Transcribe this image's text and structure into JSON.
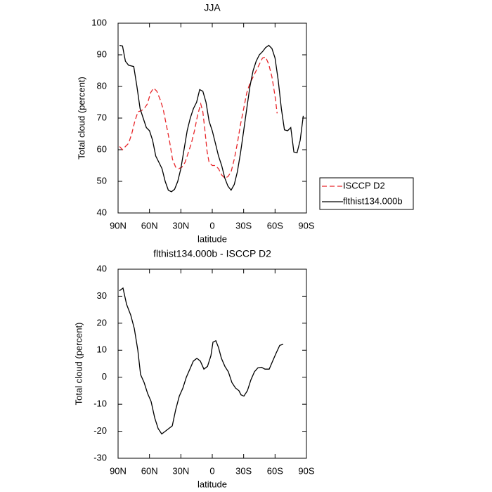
{
  "chart_data": [
    {
      "type": "line",
      "title": "JJA",
      "x_label": "latitude",
      "y_label": "Total cloud (percent)",
      "xlim": [
        90,
        -90
      ],
      "ylim": [
        40,
        100
      ],
      "xticks": [
        {
          "value": 90,
          "label": "90N"
        },
        {
          "value": 60,
          "label": "60N"
        },
        {
          "value": 30,
          "label": "30N"
        },
        0,
        {
          "value": -30,
          "label": "30S"
        },
        {
          "value": -60,
          "label": "60S"
        },
        {
          "value": -90,
          "label": "90S"
        }
      ],
      "yticks": [
        40,
        50,
        60,
        70,
        80,
        90,
        100
      ],
      "legend": "right",
      "series": [
        {
          "name": "ISCCP D2",
          "color": "#e8262a",
          "dash": true,
          "x": [
            88.6,
            85.8,
            83,
            80,
            77,
            74,
            71,
            68,
            65,
            62,
            59,
            56,
            53,
            50,
            47,
            44,
            41,
            38,
            35,
            32,
            29,
            26,
            23,
            20,
            17,
            14,
            11,
            9,
            7,
            5,
            3,
            0,
            -3,
            -6,
            -9,
            -12,
            -15,
            -18,
            -21,
            -24,
            -27,
            -30,
            -33,
            -36,
            -39,
            -42,
            -45,
            -48,
            -51,
            -54,
            -57,
            -60,
            -62
          ],
          "values": [
            61,
            60,
            61,
            62,
            65,
            69,
            72,
            72.3,
            73,
            74.5,
            78,
            79.5,
            78.5,
            76,
            73,
            68,
            63,
            57,
            54.5,
            54,
            54.5,
            56,
            59,
            62,
            66,
            71,
            74.5,
            72,
            66,
            59.5,
            56,
            55,
            55,
            54,
            52,
            51,
            51.5,
            53,
            57,
            62,
            68,
            73,
            78,
            81,
            83,
            85,
            87,
            89,
            89.3,
            87,
            83,
            77,
            71.5
          ]
        },
        {
          "name": "flthist134.000b",
          "color": "#000000",
          "dash": false,
          "x": [
            88.6,
            85.8,
            83,
            80,
            75,
            72,
            69,
            66,
            63,
            60,
            57,
            54,
            51,
            48,
            45,
            42,
            39,
            36,
            33,
            30,
            27,
            24,
            21,
            18,
            15,
            12,
            9,
            6,
            3,
            0,
            -3,
            -6,
            -9,
            -12,
            -15,
            -18,
            -21,
            -24,
            -27,
            -30,
            -33,
            -36,
            -39,
            -42,
            -45,
            -48,
            -51,
            -54,
            -57,
            -60,
            -63,
            -66,
            -69,
            -72,
            -75,
            -78,
            -81,
            -84,
            -87
          ],
          "values": [
            93,
            92.8,
            88,
            86.7,
            86.3,
            80,
            73,
            70,
            67,
            66,
            63,
            58,
            56,
            54,
            50,
            47.2,
            46.7,
            47.5,
            50,
            54,
            60,
            66,
            70,
            73,
            75,
            79,
            78.5,
            75,
            69,
            66,
            62,
            58,
            55,
            51,
            48.5,
            47.2,
            49,
            53,
            59,
            66,
            73,
            80,
            85,
            88,
            90,
            91,
            92.3,
            93,
            92,
            89,
            82,
            73,
            66.3,
            66,
            67,
            59.3,
            59,
            63,
            70.7
          ]
        }
      ]
    },
    {
      "type": "line",
      "title": "flthist134.000b - ISCCP D2",
      "x_label": "latitude",
      "y_label": "Total cloud (percent)",
      "xlim": [
        90,
        -90
      ],
      "ylim": [
        -30,
        40
      ],
      "xticks": [
        {
          "value": 90,
          "label": "90N"
        },
        {
          "value": 60,
          "label": "60N"
        },
        {
          "value": 30,
          "label": "30N"
        },
        0,
        {
          "value": -30,
          "label": "30S"
        },
        {
          "value": -60,
          "label": "60S"
        },
        {
          "value": -90,
          "label": "90S"
        }
      ],
      "yticks": [
        -30,
        -20,
        -10,
        0,
        10,
        20,
        30,
        40
      ],
      "series": [
        {
          "color": "#000000",
          "dash": false,
          "x": [
            88.7,
            85.3,
            81.9,
            77.9,
            74.5,
            71.1,
            68.5,
            65.1,
            61.8,
            58.4,
            55,
            51.7,
            48.3,
            44.9,
            41.6,
            38.2,
            34.9,
            31.5,
            28.1,
            24.8,
            21.4,
            18.1,
            14.7,
            11.4,
            8,
            4.6,
            1.3,
            -0.7,
            -3.4,
            -6,
            -8.7,
            -12.1,
            -15.4,
            -18.8,
            -22.2,
            -25.5,
            -27.5,
            -30.2,
            -33.6,
            -36.9,
            -40.3,
            -43.6,
            -47,
            -50.4,
            -54.4,
            -57.7,
            -61.1,
            -64.5,
            -67.8
          ],
          "values": [
            32,
            33,
            27,
            23,
            18,
            10,
            1,
            -2,
            -6,
            -9,
            -15,
            -19,
            -21,
            -20,
            -19,
            -18,
            -12,
            -7,
            -4,
            0,
            3,
            6,
            7,
            6,
            3,
            4,
            8,
            13,
            13.5,
            11,
            7,
            4,
            2,
            -2,
            -4,
            -5,
            -6.5,
            -7,
            -5,
            -1,
            2,
            3.5,
            3.7,
            3,
            3,
            6,
            9,
            11.8,
            12.2
          ]
        }
      ]
    }
  ]
}
